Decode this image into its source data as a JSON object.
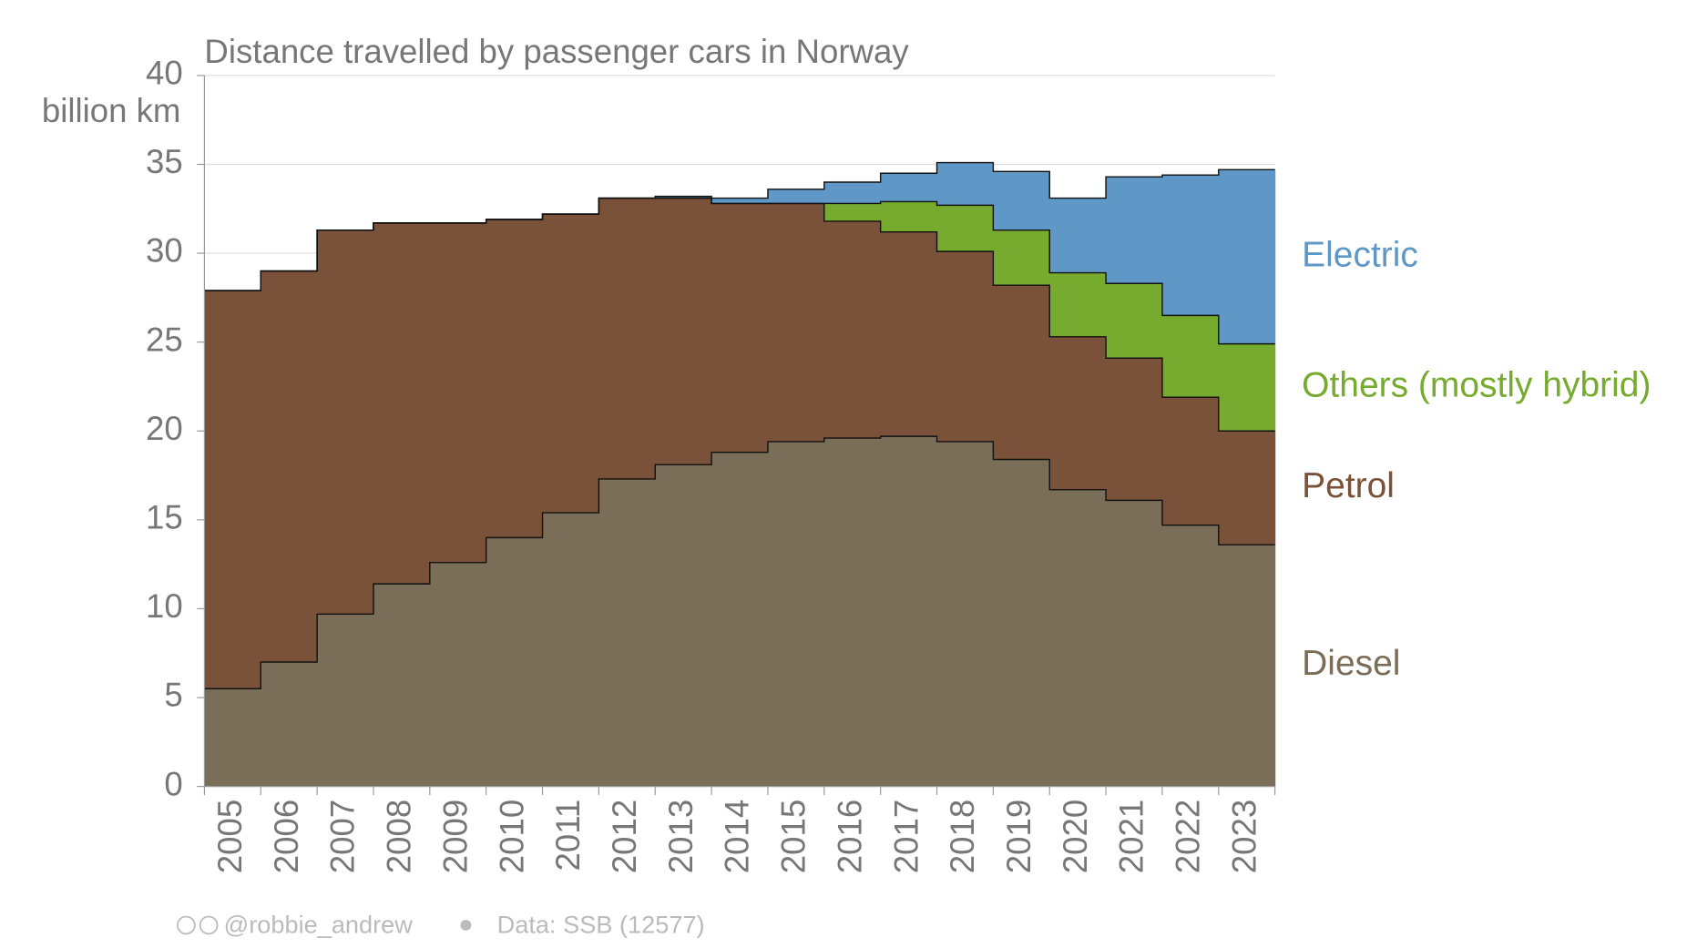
{
  "chart_data": {
    "type": "stacked-step-area",
    "title": "Distance travelled by passenger cars in Norway",
    "ylabel": "billion km",
    "categories": [
      "2005",
      "2006",
      "2007",
      "2008",
      "2009",
      "2010",
      "2011",
      "2012",
      "2013",
      "2014",
      "2015",
      "2016",
      "2017",
      "2018",
      "2019",
      "2020",
      "2021",
      "2022",
      "2023"
    ],
    "series": [
      {
        "name": "Diesel",
        "color": "#7a6e58",
        "values": [
          5.5,
          7.0,
          9.7,
          11.4,
          12.6,
          14.0,
          15.4,
          17.3,
          18.1,
          18.8,
          19.4,
          19.6,
          19.7,
          19.4,
          18.4,
          16.7,
          16.1,
          14.7,
          13.6
        ]
      },
      {
        "name": "Petrol",
        "color": "#7a523a",
        "values": [
          22.4,
          22.0,
          21.6,
          20.3,
          19.1,
          17.9,
          16.8,
          15.8,
          15.0,
          14.0,
          13.4,
          12.2,
          11.5,
          10.7,
          9.8,
          8.6,
          8.0,
          7.2,
          6.4
        ]
      },
      {
        "name": "Others (mostly hybrid)",
        "color": "#76ab2f",
        "values": [
          0,
          0,
          0,
          0,
          0,
          0,
          0,
          0,
          0,
          0,
          0,
          1.0,
          1.7,
          2.6,
          3.1,
          3.6,
          4.2,
          4.6,
          4.9
        ]
      },
      {
        "name": "Electric",
        "color": "#5f98c6",
        "values": [
          0,
          0,
          0,
          0,
          0,
          0,
          0,
          0,
          0.1,
          0.3,
          0.8,
          1.2,
          1.6,
          2.4,
          3.3,
          4.2,
          6.0,
          7.9,
          9.8
        ]
      }
    ],
    "ylim": [
      0,
      40
    ],
    "yticks": [
      0,
      5,
      10,
      15,
      20,
      25,
      30,
      35,
      40
    ],
    "grid": true,
    "credit": "@robbie_andrew",
    "source": "Data: SSB (12577)"
  }
}
